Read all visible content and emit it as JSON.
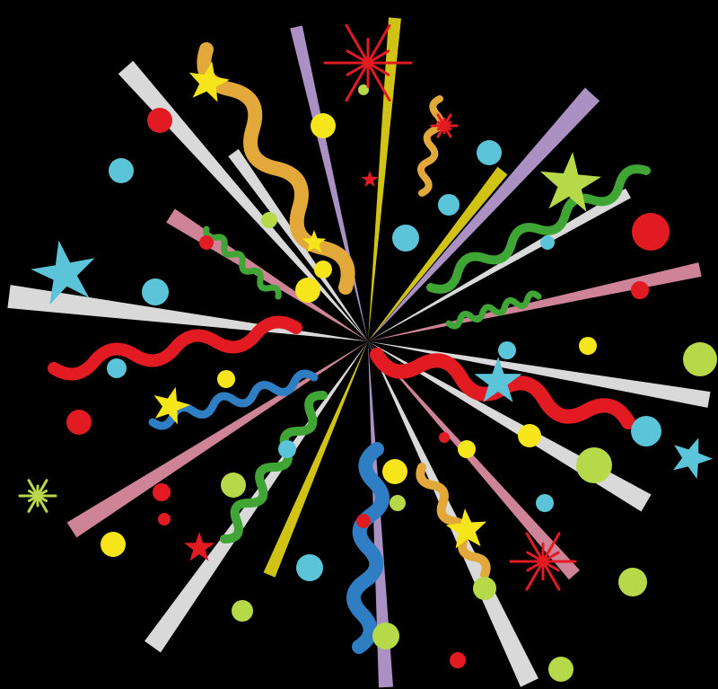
{
  "scene": {
    "description_free": true,
    "subject": "confetti-burst",
    "background_color": "#000000",
    "palette": {
      "red": "#e21b23",
      "yellow": "#f6e51a",
      "lime": "#b6d94a",
      "green": "#3fa535",
      "cyan": "#5bc4d9",
      "blue": "#2f7ec4",
      "gold": "#e3a83a",
      "violet": "#c9a9e6",
      "pink": "#f29bb0",
      "white": "#ffffff"
    },
    "elements": {
      "rays": "light-rays",
      "ribbons": "streamers",
      "dots": "confetti-dots",
      "stars": "star-shapes",
      "sparkles": "sparkle-shapes"
    }
  }
}
